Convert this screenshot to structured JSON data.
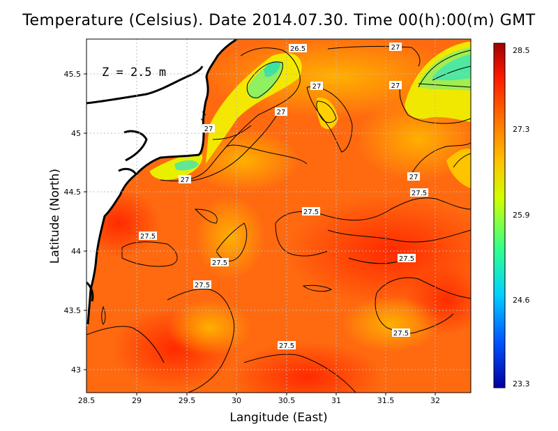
{
  "title": "Temperature (Celsius). Date 2014.07.30. Time 00(h):00(m)  GMT",
  "xlabel": "Langitude (East)",
  "ylabel": "Latitude (North)",
  "depth_label": "Z  =  2.5  m",
  "x_ticks": [
    "28.5",
    "29",
    "29.5",
    "30",
    "30.5",
    "31",
    "31.5",
    "32"
  ],
  "y_ticks": [
    "43",
    "43.5",
    "44",
    "44.5",
    "45",
    "45.5"
  ],
  "colorbar": {
    "tick_labels": [
      "28.5",
      "27.3",
      "25.9",
      "24.6",
      "23.3"
    ],
    "min": 23.3,
    "max": 28.5,
    "colors": [
      "#0000a0",
      "#0060ff",
      "#00e0ff",
      "#40ff80",
      "#ffff00",
      "#ff9000",
      "#ff2000",
      "#a00000"
    ]
  },
  "contour_labels": [
    "26.5",
    "27",
    "27",
    "27",
    "27",
    "27",
    "27",
    "27",
    "27.5",
    "27.5",
    "27.5",
    "27.5",
    "27.5",
    "27.5",
    "27.5",
    "27.5"
  ],
  "map": {
    "lon_range": [
      28.5,
      32.4
    ],
    "lat_range": [
      42.8,
      45.8
    ],
    "sea_color": "#ff6a10",
    "land_color": "#ffffff",
    "coast_color": "#000000"
  }
}
